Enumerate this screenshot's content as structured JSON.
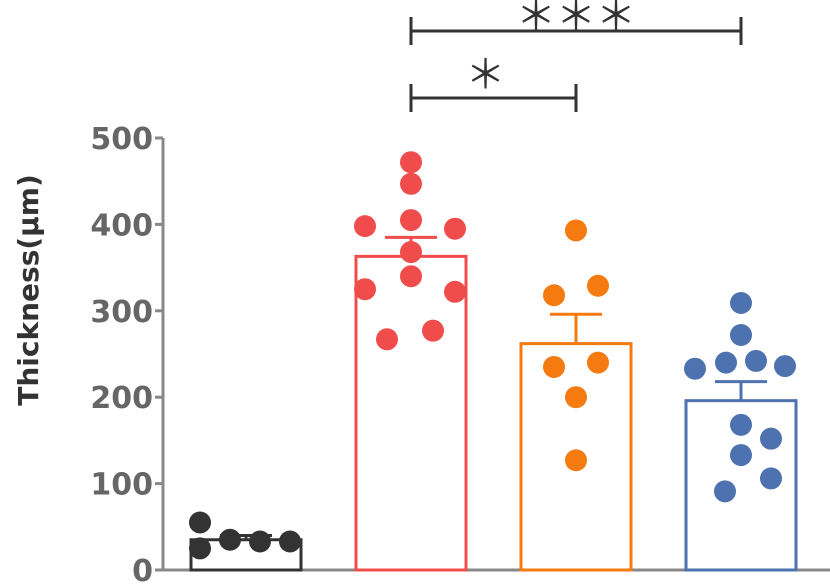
{
  "chart_data": {
    "type": "bar",
    "title": "",
    "xlabel": "",
    "ylabel": "Thickness(μm)",
    "ylim": [
      0,
      500
    ],
    "yticks": [
      0,
      100,
      200,
      300,
      400,
      500
    ],
    "groups": [
      {
        "color": "#333333",
        "mean": 35,
        "sem": 5,
        "points": [
          55,
          25,
          35,
          33,
          33
        ]
      },
      {
        "color": "#f14c4c",
        "mean": 363,
        "sem": 22,
        "points": [
          472,
          447,
          405,
          398,
          395,
          368,
          340,
          325,
          322,
          277,
          267
        ]
      },
      {
        "color": "#f57a10",
        "mean": 262,
        "sem": 34,
        "points": [
          393,
          329,
          318,
          240,
          235,
          200,
          127
        ]
      },
      {
        "color": "#4e72b0",
        "mean": 196,
        "sem": 22,
        "points": [
          309,
          272,
          242,
          240,
          236,
          233,
          168,
          152,
          133,
          106,
          91
        ]
      }
    ],
    "significance": [
      {
        "from_group": 1,
        "to_group": 3,
        "label": "＊＊＊"
      },
      {
        "from_group": 1,
        "to_group": 2,
        "label": "＊"
      }
    ]
  }
}
